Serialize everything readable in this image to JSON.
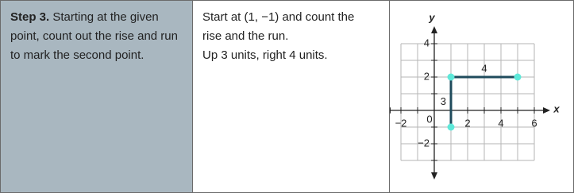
{
  "step": {
    "label": "Step 3.",
    "text": " Starting at the given point, count out the rise and run to mark the second point."
  },
  "explanation": {
    "lines": [
      "Start at (1, −1) and count the rise and the run.",
      "Up 3 units, right 4 units."
    ]
  },
  "graph": {
    "x_label": "x",
    "y_label": "y",
    "origin_label": "0",
    "xlim": [
      -2,
      6
    ],
    "ylim": [
      -3,
      4
    ],
    "xticks": [
      {
        "value": -2,
        "label": "−2"
      },
      2,
      4,
      6
    ],
    "yticks": [
      {
        "value": -2,
        "label": "−2"
      },
      2,
      4
    ],
    "points": {
      "x": [
        1,
        1,
        5
      ],
      "y": [
        -1,
        2,
        2
      ]
    },
    "point_color": "#5ee8d9",
    "line_color": "#1f4b5c",
    "rise": 3,
    "run": 4,
    "grid": true
  }
}
